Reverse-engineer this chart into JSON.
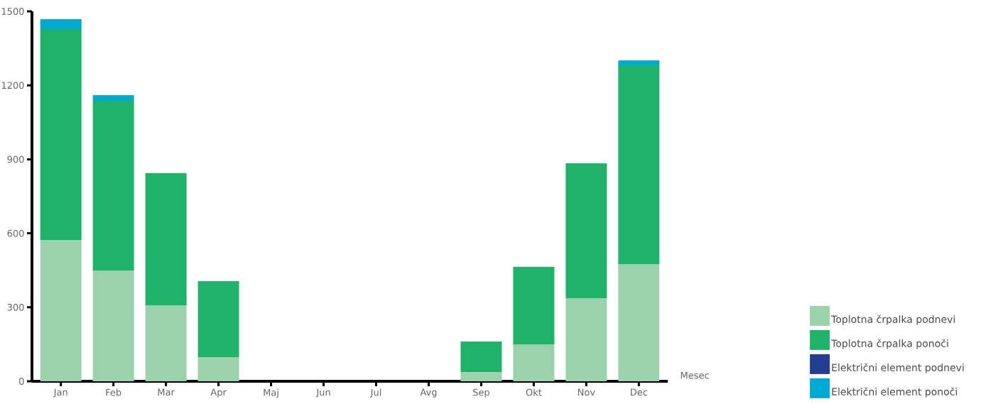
{
  "chart_data": {
    "type": "bar",
    "stacked": true,
    "xlabel": "Mesec",
    "categories": [
      "Jan",
      "Feb",
      "Mar",
      "Apr",
      "Maj",
      "Jun",
      "Jul",
      "Avg",
      "Sep",
      "Okt",
      "Nov",
      "Dec"
    ],
    "series": [
      {
        "name": "Toplotna črpalka podnevi",
        "color": "#9bd1ac",
        "values": [
          573,
          449,
          308,
          98,
          0,
          0,
          0,
          0,
          37,
          150,
          337,
          475
        ]
      },
      {
        "name": "Toplotna črpalka ponoči",
        "color": "#21b26a",
        "values": [
          855,
          688,
          536,
          308,
          0,
          0,
          0,
          0,
          124,
          314,
          547,
          806
        ]
      },
      {
        "name": "Električni element podnevi",
        "color": "#253d8f",
        "values": [
          0,
          0,
          0,
          0,
          0,
          0,
          0,
          0,
          0,
          0,
          0,
          0
        ]
      },
      {
        "name": "Električni element ponoči",
        "color": "#00a9cf",
        "values": [
          40,
          23,
          0,
          0,
          0,
          0,
          0,
          0,
          0,
          0,
          0,
          20
        ]
      }
    ],
    "ylim": [
      0,
      1500
    ],
    "yticks": [
      0,
      300,
      600,
      900,
      1200,
      1500
    ],
    "grid": false,
    "legend": "bottom right"
  }
}
